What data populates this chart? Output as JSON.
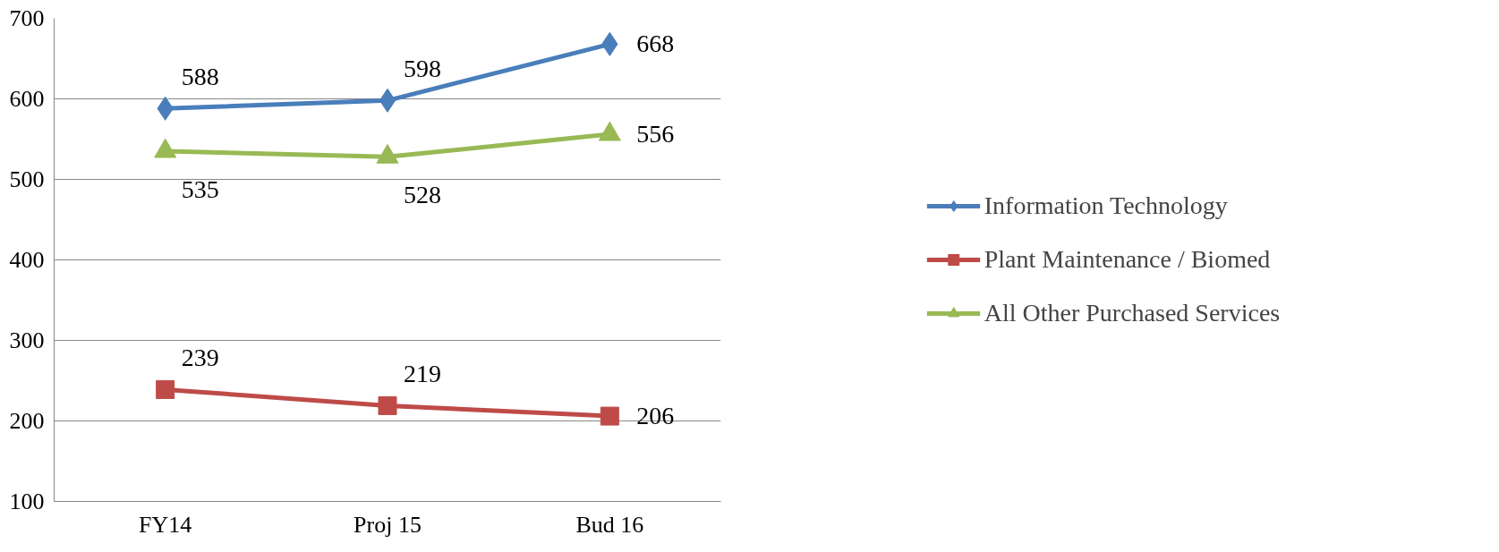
{
  "chart_data": {
    "type": "line",
    "categories": [
      "FY14",
      "Proj 15",
      "Bud 16"
    ],
    "series": [
      {
        "name": "Information Technology",
        "color": "#4a7ebb",
        "values": [
          588,
          598,
          668
        ],
        "marker": "diamond"
      },
      {
        "name": "Plant Maintenance / Biomed",
        "color": "#be4b48",
        "values": [
          239,
          219,
          206
        ],
        "marker": "square"
      },
      {
        "name": "All Other Purchased Services",
        "color": "#98b954",
        "values": [
          535,
          528,
          556
        ],
        "marker": "triangle"
      }
    ],
    "ylim": [
      100,
      700
    ],
    "yticks": [
      100,
      200,
      300,
      400,
      500,
      600,
      700
    ],
    "grid": "y",
    "legend": "right",
    "data_labels": true
  }
}
